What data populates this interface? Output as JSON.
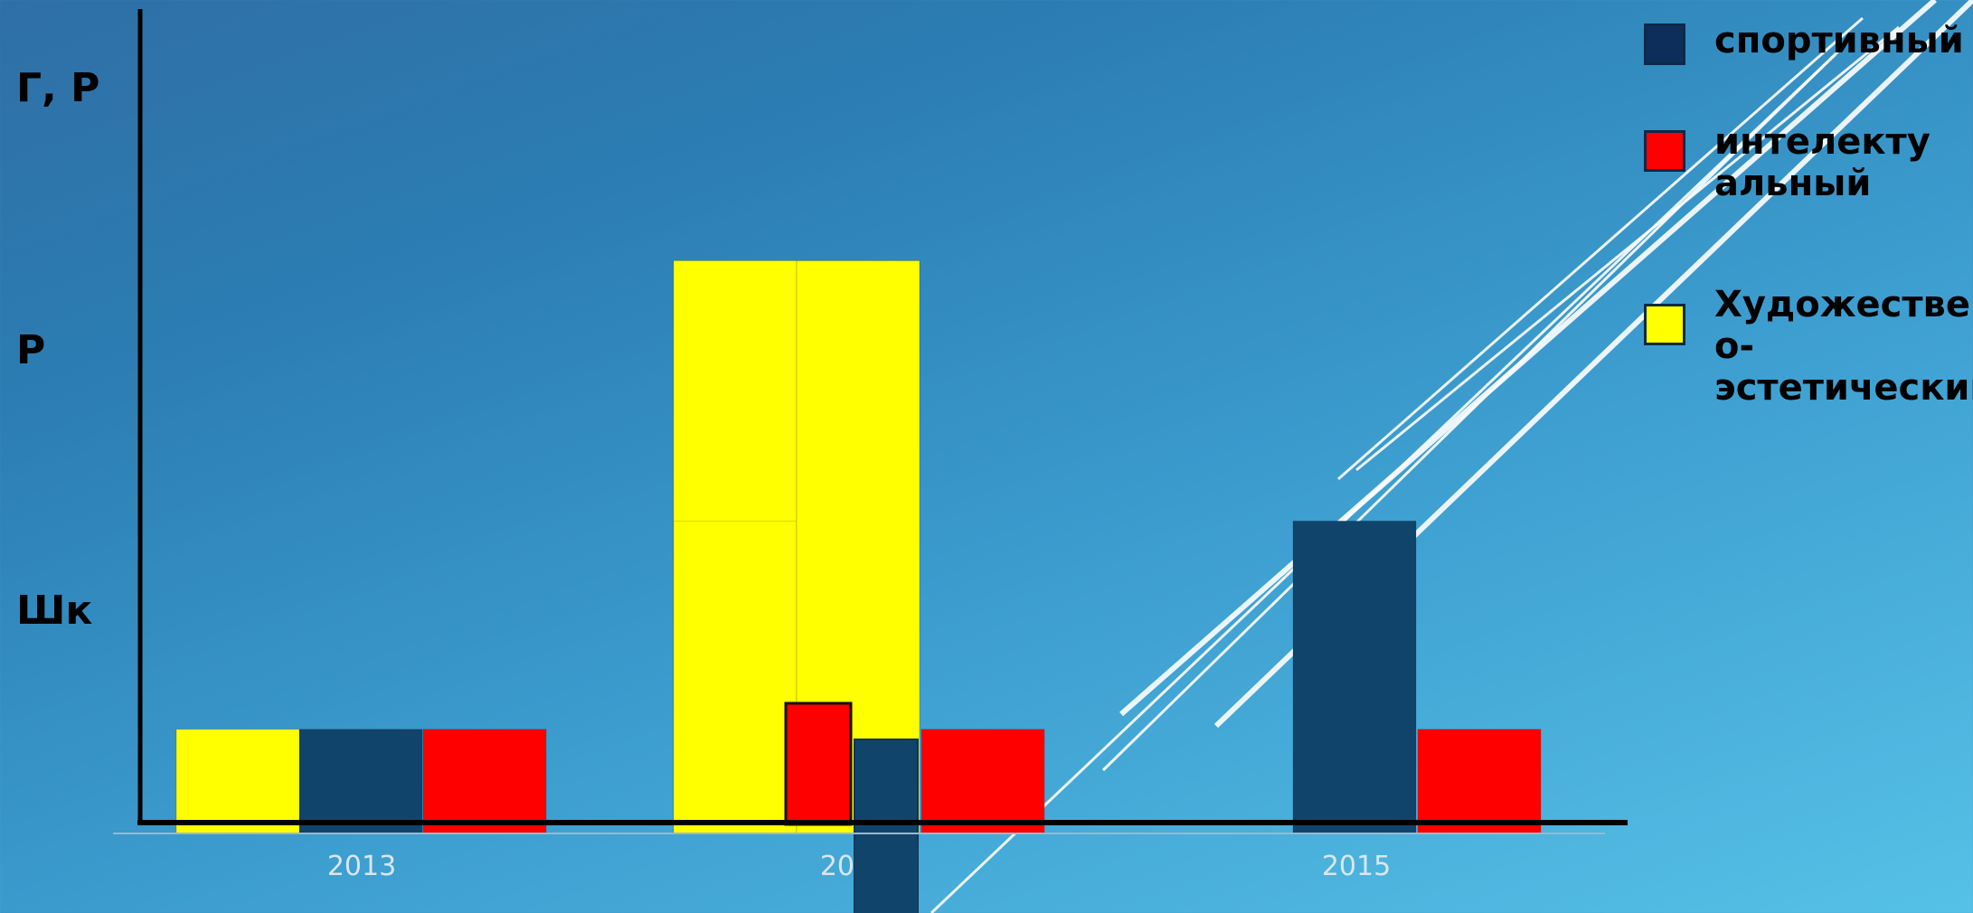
{
  "chart_data": {
    "type": "bar",
    "categories": [
      "2013",
      "2014",
      "2015"
    ],
    "y_tick_labels": [
      "Шк",
      "Р",
      "Г, Р"
    ],
    "ylim": [
      0,
      3
    ],
    "series": [
      {
        "name": "спортивный",
        "color": "#11446b",
        "values": [
          0.4,
          0.2,
          1.2
        ]
      },
      {
        "name": "интелектуальный",
        "color": "#ff0000",
        "values": [
          0.4,
          0.4,
          0.4
        ]
      },
      {
        "name": "Художественно-эстетический",
        "color": "#ffff00",
        "values": [
          0.4,
          2.2,
          0
        ]
      }
    ],
    "overlay_bars": [
      {
        "category": "2014",
        "color": "#ffff00",
        "value": 1.2
      },
      {
        "category": "2014",
        "color": "#ff0000",
        "value": 0.5
      },
      {
        "category": "2015",
        "color": "#11446b",
        "value": 0.2
      }
    ],
    "legend_position": "right",
    "grid": false
  },
  "legend": {
    "items": [
      {
        "lines": [
          "спортивный"
        ],
        "color": "#0d2e5a"
      },
      {
        "lines": [
          "интелекту",
          "альный"
        ],
        "color": "#ff0000"
      },
      {
        "lines": [
          "Художественн",
          "о-",
          "эстетический"
        ],
        "color": "#ffff00"
      }
    ]
  }
}
